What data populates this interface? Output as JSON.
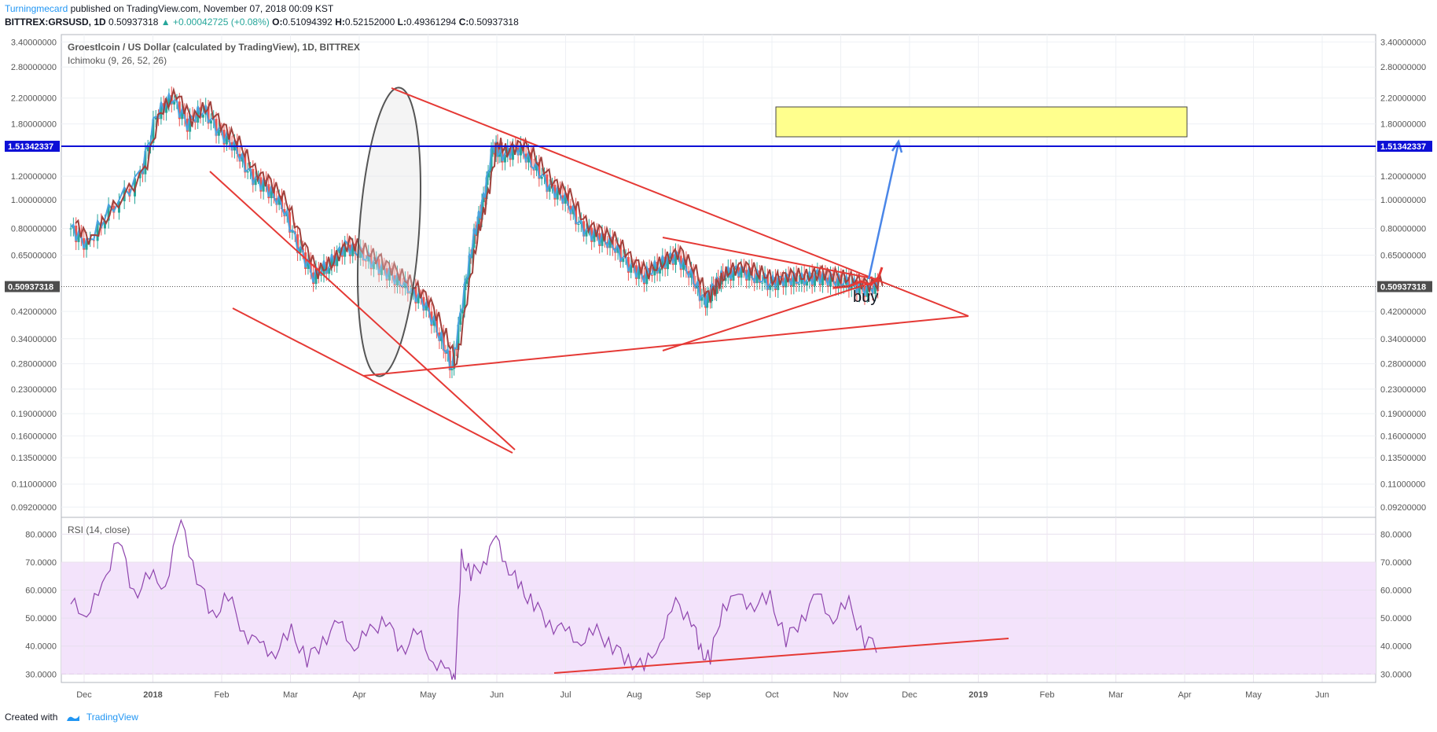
{
  "header": {
    "author": "Turningmecard",
    "published_text": "published on TradingView.com, November 07, 2018 00:09 KST",
    "symbol": "BITTREX:GRSUSD, 1D",
    "last": "0.50937318",
    "change": "▲ +0.00042725 (+0.08%)",
    "open_label": "O:",
    "open": "0.51094392",
    "high_label": "H:",
    "high": "0.52152000",
    "low_label": "L:",
    "low": "0.49361294",
    "close_label": "C:",
    "close": "0.50937318"
  },
  "footer": {
    "created_with": "Created with",
    "brand": "TradingView",
    "logo_icon": "tradingview-logo-icon"
  },
  "colors": {
    "up": "#26a69a",
    "down": "#ef5350",
    "drawing": "#e53935",
    "blue_line": "#0d0fd6",
    "arrow": "#4a86e8",
    "rsi_fill": "#f3e3fb",
    "rsi_line": "#8e44ad",
    "zone": "#ffff8d"
  },
  "chart_data": [
    {
      "type": "candlestick",
      "title": "Groestlcoin / US Dollar (calculated by TradingView), 1D, BITTREX",
      "indicator": "Ichimoku (9, 26, 52, 26)",
      "scale": "log",
      "x_ticks": [
        "Dec",
        "2018",
        "Feb",
        "Mar",
        "Apr",
        "May",
        "Jun",
        "Jul",
        "Aug",
        "Sep",
        "Oct",
        "Nov",
        "Dec",
        "2019",
        "Feb",
        "Mar",
        "Apr",
        "May",
        "Jun"
      ],
      "y_ticks": [
        "3.40000000",
        "2.80000000",
        "2.20000000",
        "1.80000000",
        "1.20000000",
        "1.00000000",
        "0.80000000",
        "0.65000000",
        "0.42000000",
        "0.34000000",
        "0.28000000",
        "0.23000000",
        "0.19000000",
        "0.16000000",
        "0.13500000",
        "0.11000000",
        "0.09200000"
      ],
      "y_tick_values": [
        3.4,
        2.8,
        2.2,
        1.8,
        1.2,
        1.0,
        0.8,
        0.65,
        0.42,
        0.34,
        0.28,
        0.23,
        0.19,
        0.16,
        0.135,
        0.11,
        0.092
      ],
      "ylim": [
        0.085,
        3.6
      ],
      "horizontal_line": {
        "value": 1.51342337,
        "label": "1.51342337"
      },
      "last_price": {
        "value": 0.50937318,
        "label": "0.50937318"
      },
      "annotation": "buy",
      "price_path": [
        [
          0.3,
          0.8
        ],
        [
          0.8,
          0.7
        ],
        [
          1.5,
          0.9
        ],
        [
          2.5,
          1.2
        ],
        [
          3.0,
          1.9
        ],
        [
          3.5,
          2.2
        ],
        [
          4.0,
          1.8
        ],
        [
          4.5,
          2.0
        ],
        [
          5.0,
          1.7
        ],
        [
          5.5,
          1.5
        ],
        [
          6.0,
          1.2
        ],
        [
          6.5,
          1.1
        ],
        [
          7.0,
          0.95
        ],
        [
          7.5,
          0.7
        ],
        [
          8.0,
          0.55
        ],
        [
          8.5,
          0.6
        ],
        [
          9.0,
          0.7
        ],
        [
          9.5,
          0.65
        ],
        [
          10.0,
          0.6
        ],
        [
          10.5,
          0.55
        ],
        [
          11.0,
          0.5
        ],
        [
          11.5,
          0.45
        ],
        [
          12.0,
          0.35
        ],
        [
          12.4,
          0.27
        ],
        [
          12.8,
          0.5
        ],
        [
          13.1,
          0.75
        ],
        [
          13.4,
          1.0
        ],
        [
          13.7,
          1.5
        ],
        [
          14.0,
          1.4
        ],
        [
          14.5,
          1.5
        ],
        [
          15.0,
          1.3
        ],
        [
          15.5,
          1.1
        ],
        [
          16.0,
          1.0
        ],
        [
          16.5,
          0.8
        ],
        [
          17.0,
          0.75
        ],
        [
          17.5,
          0.7
        ],
        [
          18.0,
          0.6
        ],
        [
          18.5,
          0.55
        ],
        [
          19.0,
          0.6
        ],
        [
          19.5,
          0.65
        ],
        [
          20.0,
          0.55
        ],
        [
          20.4,
          0.45
        ],
        [
          20.7,
          0.5
        ],
        [
          21.0,
          0.55
        ],
        [
          21.5,
          0.58
        ],
        [
          22.0,
          0.55
        ],
        [
          22.5,
          0.52
        ],
        [
          23.0,
          0.54
        ],
        [
          23.5,
          0.53
        ],
        [
          24.0,
          0.55
        ],
        [
          24.5,
          0.53
        ],
        [
          25.0,
          0.52
        ],
        [
          25.5,
          0.5
        ],
        [
          26.0,
          0.51
        ]
      ]
    },
    {
      "type": "line",
      "title": "RSI (14, close)",
      "x_ticks": [
        "Dec",
        "2018",
        "Feb",
        "Mar",
        "Apr",
        "May",
        "Jun",
        "Jul",
        "Aug",
        "Sep",
        "Oct",
        "Nov",
        "Dec",
        "2019",
        "Feb",
        "Mar",
        "Apr",
        "May",
        "Jun"
      ],
      "y_ticks": [
        "80.0000",
        "70.0000",
        "60.0000",
        "50.0000",
        "40.0000",
        "30.0000"
      ],
      "y_tick_values": [
        80,
        70,
        60,
        50,
        40,
        30
      ],
      "ylim": [
        27,
        86
      ],
      "band": [
        30,
        70
      ],
      "rsi_path": [
        [
          0.3,
          55
        ],
        [
          0.8,
          52
        ],
        [
          1.3,
          60
        ],
        [
          1.8,
          80
        ],
        [
          2.3,
          58
        ],
        [
          2.8,
          65
        ],
        [
          3.3,
          62
        ],
        [
          3.8,
          85
        ],
        [
          4.3,
          65
        ],
        [
          4.8,
          50
        ],
        [
          5.3,
          58
        ],
        [
          5.8,
          45
        ],
        [
          6.3,
          40
        ],
        [
          6.8,
          38
        ],
        [
          7.3,
          45
        ],
        [
          7.8,
          35
        ],
        [
          8.3,
          42
        ],
        [
          8.8,
          48
        ],
        [
          9.3,
          40
        ],
        [
          9.8,
          45
        ],
        [
          10.3,
          50
        ],
        [
          10.8,
          38
        ],
        [
          11.3,
          45
        ],
        [
          11.8,
          35
        ],
        [
          12.3,
          30
        ],
        [
          12.5,
          29
        ],
        [
          12.7,
          72
        ],
        [
          13.0,
          65
        ],
        [
          13.4,
          70
        ],
        [
          13.8,
          78
        ],
        [
          14.2,
          68
        ],
        [
          14.6,
          60
        ],
        [
          15.0,
          55
        ],
        [
          15.5,
          48
        ],
        [
          16.0,
          45
        ],
        [
          16.5,
          42
        ],
        [
          17.0,
          45
        ],
        [
          17.5,
          40
        ],
        [
          18.0,
          35
        ],
        [
          18.5,
          32
        ],
        [
          19.0,
          42
        ],
        [
          19.5,
          55
        ],
        [
          20.0,
          50
        ],
        [
          20.3,
          38
        ],
        [
          20.6,
          35
        ],
        [
          21.0,
          55
        ],
        [
          21.5,
          57
        ],
        [
          22.0,
          55
        ],
        [
          22.5,
          57
        ],
        [
          23.0,
          42
        ],
        [
          23.5,
          50
        ],
        [
          24.0,
          58
        ],
        [
          24.5,
          50
        ],
        [
          25.0,
          55
        ],
        [
          25.5,
          42
        ],
        [
          26.0,
          40
        ]
      ]
    }
  ]
}
